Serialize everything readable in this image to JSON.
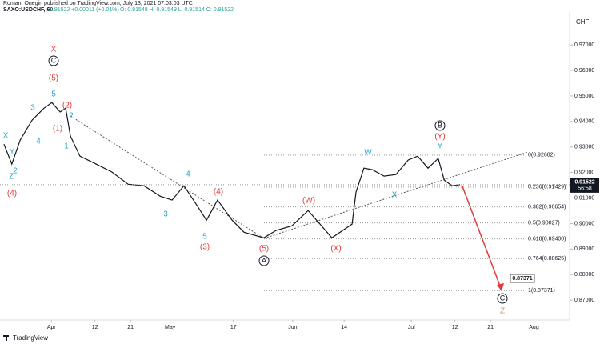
{
  "header": {
    "author": "Roman_Onegin published on TradingView.com, July 13, 2021 07:03:03 UTC",
    "symbol": "SAXO:USDCHF, 60",
    "change": "0.91522 +0.00011 (+0.01%)",
    "ohlc": "O: 0.91548 H: 0.91549 L: 0.91514 C: 0.91522"
  },
  "footer": "TradingView",
  "chart_data": {
    "type": "line",
    "color": "#131722",
    "currency": "CHF",
    "price_tag": "0.91522",
    "countdown": "56:58",
    "target_tag": "0.87371",
    "x": [
      19.0,
      21.0,
      23.1,
      26.1,
      29.1,
      31.1,
      33.2,
      34.6,
      35.8,
      38.2,
      42.3,
      46.3,
      50.4,
      54.4,
      58.5,
      61.5,
      64.5,
      67.6,
      70.2,
      73.0,
      76.7,
      79.7,
      84.7,
      87.8,
      91.8,
      95.9,
      98.9,
      101.9,
      107.0,
      108.0,
      110.0,
      112.1,
      115.1,
      118.1,
      121.2,
      123.6,
      126.2,
      128.8,
      130.3,
      132.3,
      134.3
    ],
    "values": [
      0.9311,
      0.9233,
      0.9327,
      0.9405,
      0.9452,
      0.9474,
      0.9437,
      0.9452,
      0.9343,
      0.9264,
      0.9233,
      0.9202,
      0.9154,
      0.9148,
      0.9107,
      0.9092,
      0.9148,
      0.9076,
      0.9013,
      0.9092,
      0.9013,
      0.8966,
      0.8944,
      0.8973,
      0.8991,
      0.9051,
      0.8998,
      0.8944,
      0.8998,
      0.9123,
      0.9217,
      0.9211,
      0.9186,
      0.9192,
      0.9249,
      0.9264,
      0.9217,
      0.9255,
      0.917,
      0.9148,
      0.91522
    ],
    "xlim": [
      18,
      162
    ],
    "ylim": [
      0.8622,
      0.9829
    ],
    "xticks": [
      {
        "value": 31,
        "label": "Apr"
      },
      {
        "value": 42,
        "label": "12"
      },
      {
        "value": 51,
        "label": "21"
      },
      {
        "value": 61,
        "label": "May"
      },
      {
        "value": 77,
        "label": "17"
      },
      {
        "value": 92,
        "label": "Jun"
      },
      {
        "value": 105,
        "label": "14"
      },
      {
        "value": 122,
        "label": "Jul"
      },
      {
        "value": 133,
        "label": "12"
      },
      {
        "value": 142,
        "label": "21"
      },
      {
        "value": 153,
        "label": "Aug"
      }
    ],
    "yticks": [
      {
        "value": 0.87,
        "label": "0.87000"
      },
      {
        "value": 0.88,
        "label": "0.88000"
      },
      {
        "value": 0.89,
        "label": "0.89000"
      },
      {
        "value": 0.9,
        "label": "0.90000"
      },
      {
        "value": 0.91,
        "label": "0.91000"
      },
      {
        "value": 0.92,
        "label": "0.92000"
      },
      {
        "value": 0.93,
        "label": "0.93000"
      },
      {
        "value": 0.94,
        "label": "0.94000"
      },
      {
        "value": 0.95,
        "label": "0.95000"
      },
      {
        "value": 0.96,
        "label": "0.96000"
      },
      {
        "value": 0.97,
        "label": "0.97000"
      }
    ],
    "fib_levels": [
      {
        "value": 0.92682,
        "label": "0(0.92682)"
      },
      {
        "value": 0.91429,
        "label": "0.236(0.91429)"
      },
      {
        "value": 0.90654,
        "label": "0.382(0.90654)"
      },
      {
        "value": 0.90027,
        "label": "0.5(0.90027)"
      },
      {
        "value": 0.894,
        "label": "0.618(0.89400)"
      },
      {
        "value": 0.88625,
        "label": "0.764(0.88625)"
      },
      {
        "value": 0.87371,
        "label": "1(0.87371)"
      }
    ],
    "wave_labels": [
      "X",
      "C",
      "(5)",
      "5",
      "3",
      "(2)",
      "2",
      "(1)",
      "1",
      "4",
      "X",
      "Y",
      "2",
      "Z",
      "(4)",
      "4",
      "3",
      "(4)",
      "5",
      "(3)",
      "(5)",
      "A",
      "(W)",
      "(X)",
      "W",
      "X",
      "Y",
      "(Y)",
      "B",
      "C",
      "Z"
    ]
  }
}
